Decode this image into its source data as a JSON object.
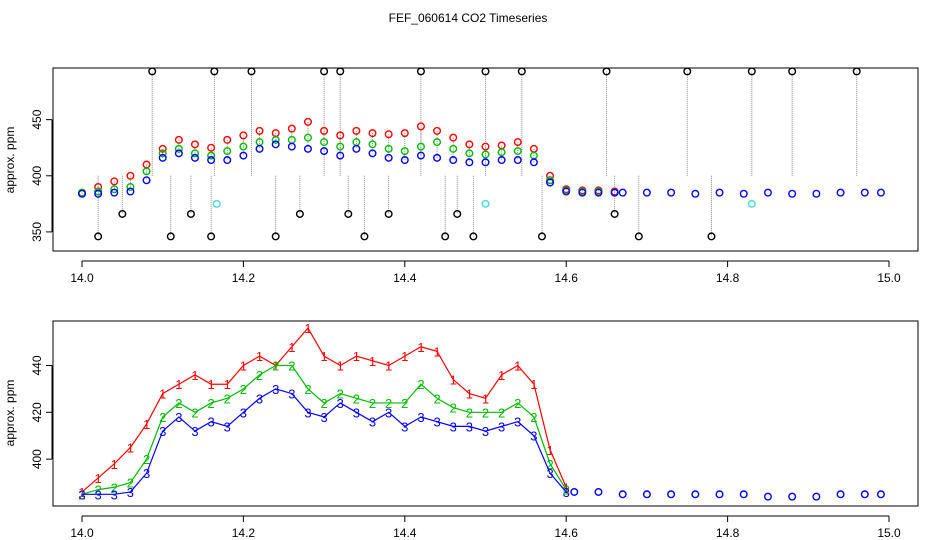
{
  "figure_title": "FEF_060614  CO2 Timeseries",
  "colors": {
    "series1": "#ff0000",
    "series2": "#00bb00",
    "series3": "#0000ff",
    "raw": "#000000",
    "cal": "#44dddd",
    "connector": "#888888"
  },
  "chart_data": [
    {
      "type": "scatter",
      "title": "",
      "xlabel": "",
      "ylabel": "approx. ppm",
      "xlim": [
        14.0,
        15.0
      ],
      "ylim": [
        333,
        496
      ],
      "x_ticks": [
        14.0,
        14.2,
        14.4,
        14.6,
        14.8,
        15.0
      ],
      "x_tick_labels": [
        "14.0",
        "14.2",
        "14.4",
        "14.6",
        "14.8",
        "15.0"
      ],
      "y_ticks": [
        350,
        400,
        450
      ],
      "y_tick_labels": [
        "350",
        "400",
        "450"
      ],
      "markers": "open circles with grey vertical connectors",
      "series": [
        {
          "name": "1",
          "color": "#ff0000",
          "x": [
            14.0,
            14.02,
            14.04,
            14.06,
            14.08,
            14.1,
            14.12,
            14.14,
            14.16,
            14.18,
            14.2,
            14.22,
            14.24,
            14.26,
            14.28,
            14.3,
            14.32,
            14.34,
            14.36,
            14.38,
            14.4,
            14.42,
            14.44,
            14.46,
            14.48,
            14.5,
            14.52,
            14.54,
            14.56,
            14.58,
            14.6,
            14.62,
            14.64,
            14.66
          ],
          "values": [
            385,
            390,
            395,
            400,
            410,
            424,
            432,
            428,
            425,
            432,
            436,
            440,
            438,
            442,
            448,
            440,
            436,
            440,
            438,
            437,
            438,
            444,
            440,
            434,
            428,
            426,
            427,
            430,
            424,
            400,
            388,
            387,
            387,
            386
          ]
        },
        {
          "name": "2",
          "color": "#00bb00",
          "x": [
            14.0,
            14.02,
            14.04,
            14.06,
            14.08,
            14.1,
            14.12,
            14.14,
            14.16,
            14.18,
            14.2,
            14.22,
            14.24,
            14.26,
            14.28,
            14.3,
            14.32,
            14.34,
            14.36,
            14.38,
            14.4,
            14.42,
            14.44,
            14.46,
            14.48,
            14.5,
            14.52,
            14.54,
            14.56,
            14.58,
            14.6,
            14.62,
            14.64,
            14.66
          ],
          "values": [
            385,
            386,
            388,
            390,
            404,
            420,
            424,
            420,
            418,
            422,
            426,
            430,
            432,
            432,
            434,
            430,
            426,
            430,
            428,
            424,
            422,
            426,
            430,
            424,
            420,
            419,
            421,
            422,
            418,
            396,
            387,
            386,
            386,
            385
          ]
        },
        {
          "name": "3",
          "color": "#0000ff",
          "x": [
            14.0,
            14.02,
            14.04,
            14.06,
            14.08,
            14.1,
            14.12,
            14.14,
            14.16,
            14.18,
            14.2,
            14.22,
            14.24,
            14.26,
            14.28,
            14.3,
            14.32,
            14.34,
            14.36,
            14.38,
            14.4,
            14.42,
            14.44,
            14.46,
            14.48,
            14.5,
            14.52,
            14.54,
            14.56,
            14.58,
            14.6,
            14.62,
            14.64,
            14.66
          ],
          "values": [
            384,
            384,
            385,
            386,
            396,
            416,
            420,
            416,
            414,
            414,
            418,
            424,
            428,
            426,
            424,
            422,
            418,
            424,
            420,
            416,
            414,
            418,
            416,
            414,
            412,
            412,
            414,
            414,
            412,
            394,
            386,
            385,
            385,
            385
          ]
        },
        {
          "name": "plateau",
          "color": "#0000ff",
          "x": [
            14.67,
            14.7,
            14.73,
            14.76,
            14.79,
            14.82,
            14.85,
            14.88,
            14.91,
            14.94,
            14.97,
            14.99
          ],
          "values": [
            385,
            385,
            385,
            384,
            385,
            384,
            385,
            384,
            384,
            385,
            385,
            385
          ]
        },
        {
          "name": "raw",
          "color": "#000000",
          "x": [
            14.02,
            14.05,
            14.087,
            14.11,
            14.135,
            14.16,
            14.164,
            14.21,
            14.24,
            14.27,
            14.3,
            14.32,
            14.33,
            14.35,
            14.38,
            14.42,
            14.45,
            14.465,
            14.485,
            14.5,
            14.545,
            14.57,
            14.65,
            14.66,
            14.69,
            14.75,
            14.78,
            14.83,
            14.88,
            14.96
          ],
          "values": [
            346,
            366,
            493,
            346,
            366,
            346,
            493,
            493,
            346,
            366,
            493,
            493,
            366,
            346,
            366,
            493,
            346,
            366,
            346,
            493,
            493,
            346,
            493,
            366,
            346,
            493,
            346,
            493,
            493,
            493
          ]
        },
        {
          "name": "cal",
          "color": "#44dddd",
          "x": [
            14.167,
            14.5,
            14.83
          ],
          "values": [
            375,
            375,
            375
          ]
        }
      ]
    },
    {
      "type": "line",
      "title": "",
      "xlabel": "",
      "ylabel": "approx. ppm",
      "xlim": [
        14.0,
        15.0
      ],
      "ylim": [
        380,
        459
      ],
      "x_ticks": [
        14.0,
        14.2,
        14.4,
        14.6,
        14.8,
        15.0
      ],
      "x_tick_labels": [
        "14.0",
        "14.2",
        "14.4",
        "14.6",
        "14.8",
        "15.0"
      ],
      "y_ticks": [
        400,
        420,
        440
      ],
      "y_tick_labels": [
        "400",
        "420",
        "440"
      ],
      "markers": "digit labels 1, 2, 3 per series; plateau as open circles",
      "series": [
        {
          "name": "1",
          "label": "1",
          "color": "#ff0000",
          "x": [
            14.0,
            14.02,
            14.04,
            14.06,
            14.08,
            14.1,
            14.12,
            14.14,
            14.16,
            14.18,
            14.2,
            14.22,
            14.24,
            14.26,
            14.28,
            14.3,
            14.32,
            14.34,
            14.36,
            14.38,
            14.4,
            14.42,
            14.44,
            14.46,
            14.48,
            14.5,
            14.52,
            14.54,
            14.56,
            14.58,
            14.6
          ],
          "values": [
            386,
            392,
            398,
            405,
            415,
            428,
            432,
            436,
            432,
            432,
            440,
            444,
            440,
            448,
            456,
            444,
            440,
            444,
            442,
            440,
            444,
            448,
            446,
            434,
            428,
            426,
            436,
            440,
            432,
            404,
            388
          ]
        },
        {
          "name": "2",
          "label": "2",
          "color": "#00bb00",
          "x": [
            14.0,
            14.02,
            14.04,
            14.06,
            14.08,
            14.1,
            14.12,
            14.14,
            14.16,
            14.18,
            14.2,
            14.22,
            14.24,
            14.26,
            14.28,
            14.3,
            14.32,
            14.34,
            14.36,
            14.38,
            14.4,
            14.42,
            14.44,
            14.46,
            14.48,
            14.5,
            14.52,
            14.54,
            14.56,
            14.58,
            14.6
          ],
          "values": [
            385,
            387,
            388,
            390,
            400,
            418,
            424,
            420,
            424,
            426,
            430,
            436,
            440,
            440,
            430,
            424,
            428,
            426,
            424,
            424,
            424,
            432,
            426,
            422,
            420,
            420,
            420,
            424,
            418,
            398,
            387
          ]
        },
        {
          "name": "3",
          "label": "3",
          "color": "#0000ff",
          "x": [
            14.0,
            14.02,
            14.04,
            14.06,
            14.08,
            14.1,
            14.12,
            14.14,
            14.16,
            14.18,
            14.2,
            14.22,
            14.24,
            14.26,
            14.28,
            14.3,
            14.32,
            14.34,
            14.36,
            14.38,
            14.4,
            14.42,
            14.44,
            14.46,
            14.48,
            14.5,
            14.52,
            14.54,
            14.56,
            14.58,
            14.6
          ],
          "values": [
            385,
            385,
            385,
            386,
            394,
            412,
            418,
            412,
            416,
            414,
            420,
            426,
            430,
            428,
            420,
            418,
            424,
            420,
            416,
            420,
            414,
            418,
            416,
            414,
            414,
            412,
            414,
            416,
            410,
            394,
            386
          ]
        },
        {
          "name": "plateau",
          "label": "",
          "color": "#0000ff",
          "x": [
            14.61,
            14.64,
            14.67,
            14.7,
            14.73,
            14.76,
            14.79,
            14.82,
            14.85,
            14.88,
            14.91,
            14.94,
            14.97,
            14.99
          ],
          "values": [
            386,
            386,
            385,
            385,
            385,
            385,
            385,
            385,
            384,
            384,
            384,
            385,
            385,
            385
          ]
        }
      ]
    }
  ]
}
